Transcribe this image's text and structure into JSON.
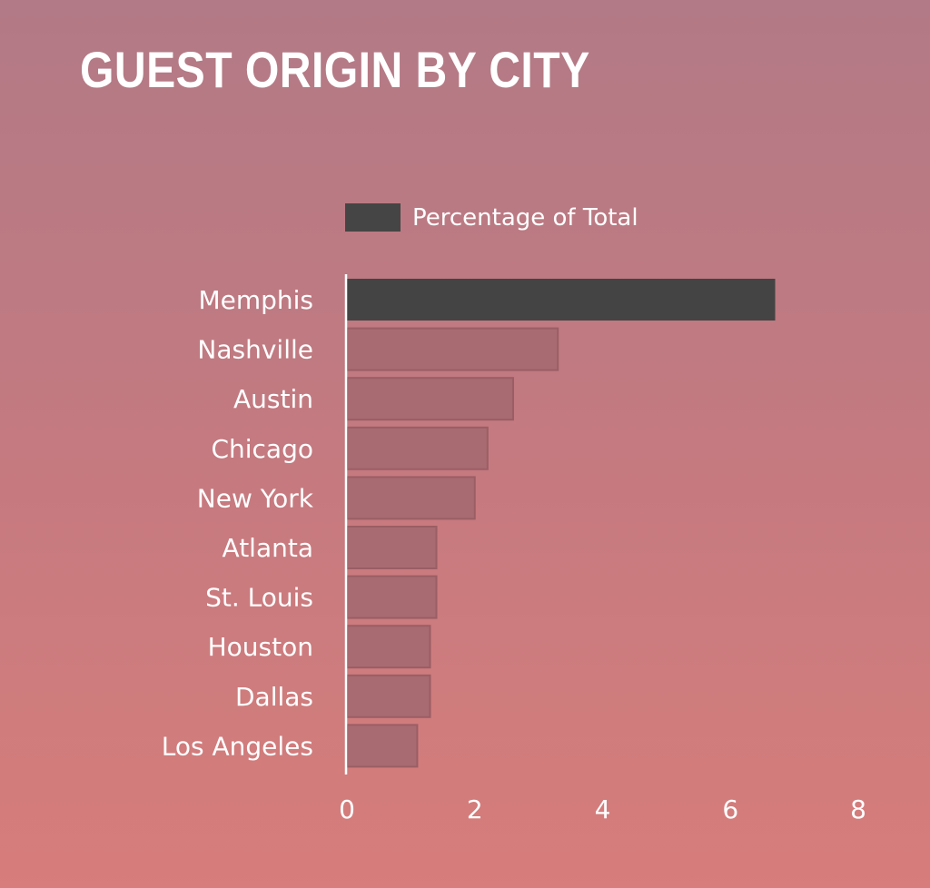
{
  "chart_data": {
    "type": "bar",
    "orientation": "horizontal",
    "title": "GUEST ORIGIN BY CITY",
    "categories": [
      "Memphis",
      "Nashville",
      "Austin",
      "Chicago",
      "New York",
      "Atlanta",
      "St. Louis",
      "Houston",
      "Dallas",
      "Los Angeles"
    ],
    "series": [
      {
        "name": "Percentage of Total",
        "values": [
          6.7,
          3.3,
          2.6,
          2.2,
          2.0,
          1.4,
          1.4,
          1.3,
          1.3,
          1.1
        ]
      }
    ],
    "xlim": [
      0,
      8
    ],
    "xticks": [
      "0",
      "2",
      "4",
      "6",
      "8"
    ],
    "grid": false,
    "legend_position": "top",
    "colors": {
      "highlight": "#444444",
      "bar": "#a86b71",
      "bar_border": "#9a5e64",
      "text": "#ffffff"
    }
  }
}
